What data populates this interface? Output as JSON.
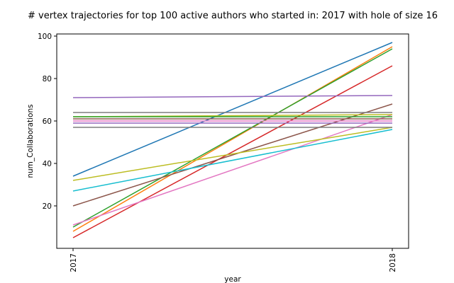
{
  "chart_data": {
    "type": "line",
    "title": "# vertex trajectories for top 100 active authors who started in: 2017 with hole of size 16",
    "xlabel": "year",
    "ylabel": "num_Collaborations",
    "x": [
      "2017",
      "2018"
    ],
    "yticks": [
      20,
      40,
      60,
      80,
      100
    ],
    "ylim": [
      0,
      101
    ],
    "grid": false,
    "legend": "none",
    "series": [
      {
        "values": [
          34,
          97
        ],
        "color": "#1f77b4"
      },
      {
        "values": [
          8,
          95
        ],
        "color": "#ff7f0e"
      },
      {
        "values": [
          10,
          94
        ],
        "color": "#2ca02c"
      },
      {
        "values": [
          5,
          86
        ],
        "color": "#d62728"
      },
      {
        "values": [
          71,
          72
        ],
        "color": "#9467bd"
      },
      {
        "values": [
          20,
          68
        ],
        "color": "#8c564b"
      },
      {
        "values": [
          11,
          63
        ],
        "color": "#e377c2"
      },
      {
        "values": [
          64,
          64
        ],
        "color": "#7f7f7f"
      },
      {
        "values": [
          32,
          57
        ],
        "color": "#bcbd22"
      },
      {
        "values": [
          27,
          56
        ],
        "color": "#17becf"
      },
      {
        "values": [
          62,
          63
        ],
        "color": "#bcbd22"
      },
      {
        "values": [
          62,
          62
        ],
        "color": "#2ca02c"
      },
      {
        "values": [
          61,
          61
        ],
        "color": "#8c564b"
      },
      {
        "values": [
          60,
          60
        ],
        "color": "#e377c2"
      },
      {
        "values": [
          59,
          59
        ],
        "color": "#9467bd"
      },
      {
        "values": [
          57,
          57
        ],
        "color": "#7f7f7f"
      }
    ]
  }
}
